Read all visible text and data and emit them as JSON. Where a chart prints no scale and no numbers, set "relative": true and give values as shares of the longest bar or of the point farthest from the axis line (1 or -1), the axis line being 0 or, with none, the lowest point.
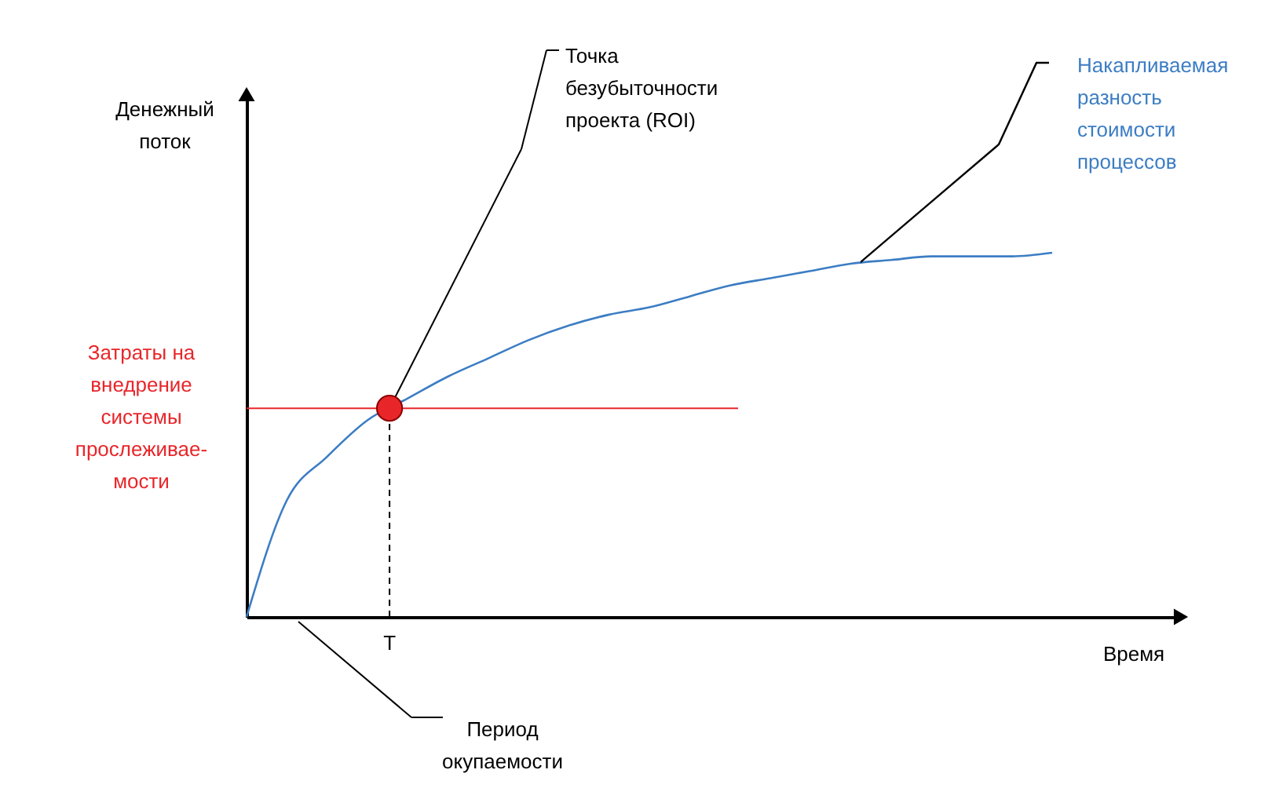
{
  "chart_data": {
    "type": "line",
    "relative": true,
    "xlabel": "Время",
    "ylabel": "Денежный поток",
    "categories": [
      null,
      null,
      null,
      null,
      null,
      null,
      null,
      null,
      null,
      null,
      null,
      null,
      null,
      null,
      null,
      null,
      null,
      null,
      null,
      null,
      null
    ],
    "series": [
      {
        "name": "Накапливаемая разность стоимости процессов",
        "color": "#3c7dc4",
        "values": [
          0,
          0.32,
          0.44,
          0.54,
          0.6,
          0.66,
          0.71,
          0.76,
          0.8,
          0.83,
          0.85,
          0.88,
          0.91,
          0.93,
          0.95,
          0.97,
          0.98,
          0.99,
          0.99,
          0.99,
          1
        ]
      }
    ],
    "ref_lines": [
      {
        "axis": "y",
        "value": 0.573,
        "label": "Затраты на внедрение системы прослеживае-мости",
        "color": "#e8262a"
      }
    ],
    "annotations": [
      "Точка безубыточности проекта (ROI)",
      "T",
      "Период окупаемости"
    ]
  }
}
